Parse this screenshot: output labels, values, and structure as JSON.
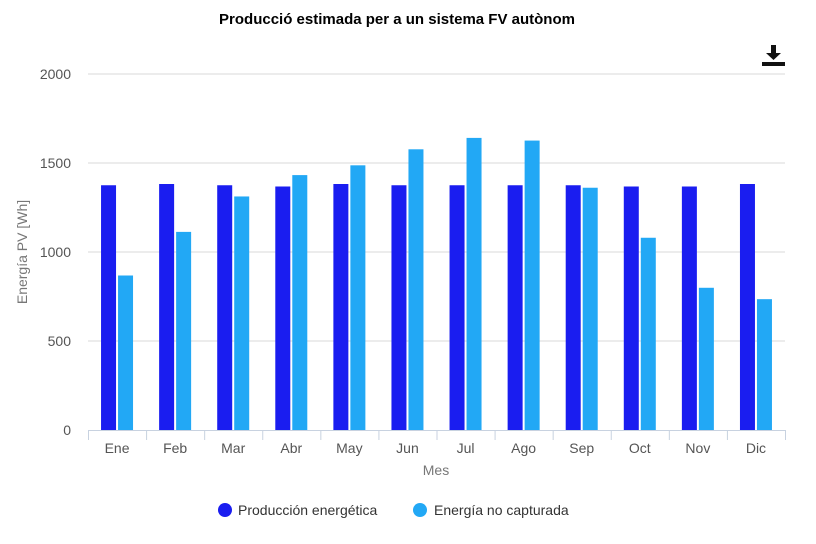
{
  "chart_data": {
    "type": "bar",
    "title": "Producció estimada per a un sistema FV autònom",
    "xlabel": "Mes",
    "ylabel": "Energía PV [Wh]",
    "ylim": [
      0,
      2000
    ],
    "yticks": [
      0,
      500,
      1000,
      1500,
      2000
    ],
    "grid": true,
    "legend_position": "bottom",
    "categories": [
      "Ene",
      "Feb",
      "Mar",
      "Abr",
      "May",
      "Jun",
      "Jul",
      "Ago",
      "Sep",
      "Oct",
      "Nov",
      "Dic"
    ],
    "series": [
      {
        "name": "Producción energética",
        "color": "#1a1df0",
        "values": [
          1375,
          1382,
          1375,
          1368,
          1382,
          1375,
          1375,
          1375,
          1375,
          1368,
          1368,
          1382
        ]
      },
      {
        "name": "Energía no capturada",
        "color": "#22a8f5",
        "values": [
          868,
          1113,
          1312,
          1432,
          1487,
          1577,
          1641,
          1626,
          1361,
          1080,
          799,
          735
        ]
      }
    ]
  },
  "toolbar": {
    "download_icon": "download-icon"
  }
}
